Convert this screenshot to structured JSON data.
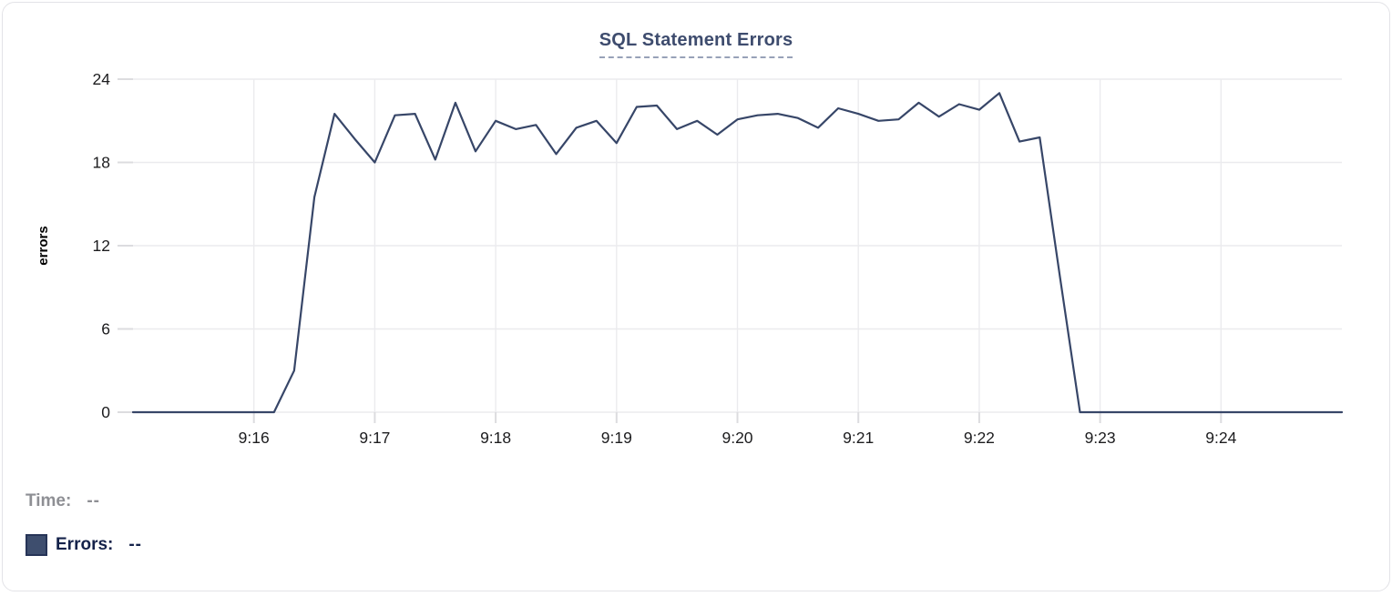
{
  "card": {
    "title": "SQL Statement Errors"
  },
  "chart_data": {
    "type": "line",
    "title": "SQL Statement Errors",
    "xlabel": "",
    "ylabel": "errors",
    "ylim": [
      0,
      24
    ],
    "yticks": [
      0,
      6,
      12,
      18,
      24
    ],
    "xtick_labels": [
      "9:16",
      "9:17",
      "9:18",
      "9:19",
      "9:20",
      "9:21",
      "9:22",
      "9:23",
      "9:24"
    ],
    "x_start": "9:15:00",
    "x_end": "9:25:00",
    "x_interval_seconds": 10,
    "grid": true,
    "legend_position": "none",
    "series": [
      {
        "name": "Errors",
        "color": "#374668",
        "values": [
          0,
          0,
          0,
          0,
          0,
          0,
          0,
          0,
          3,
          15.5,
          21.5,
          19.7,
          18,
          21.4,
          21.5,
          18.2,
          22.3,
          18.8,
          21,
          20.4,
          20.7,
          18.6,
          20.5,
          21,
          19.4,
          22,
          22.1,
          20.4,
          21,
          20,
          21.1,
          21.4,
          21.5,
          21.2,
          20.5,
          21.9,
          21.5,
          21,
          21.1,
          22.3,
          21.3,
          22.2,
          21.8,
          23,
          19.5,
          19.8,
          9.8,
          0,
          0,
          0,
          0,
          0,
          0,
          0,
          0,
          0,
          0,
          0,
          0,
          0,
          0
        ]
      }
    ]
  },
  "tooltip": {
    "time_label": "Time:",
    "time_value": "--",
    "errors_label": "Errors:",
    "errors_value": "--",
    "swatch_color": "#3e4e6e"
  },
  "colors": {
    "title": "#3e4c6e",
    "title_underline": "#97a1b8",
    "gridline": "#ebebee",
    "axis_tick": "#dcdcdf",
    "axis_text": "#1c1c1e",
    "line": "#374668",
    "card_border": "#e3e3e7"
  }
}
